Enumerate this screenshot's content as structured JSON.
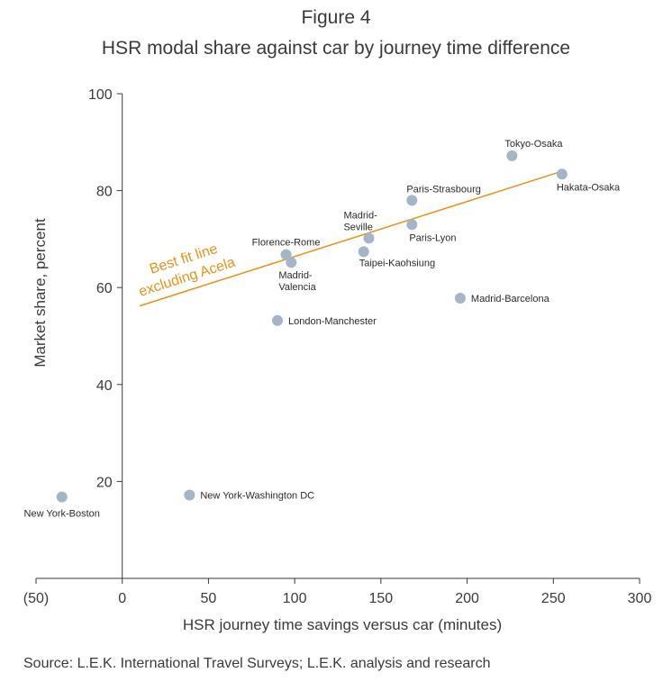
{
  "figure_label": "Figure 4",
  "source_note": "Source: L.E.K. International Travel Surveys; L.E.K. analysis and research",
  "colors": {
    "point": "#a3b5c6",
    "fit_line": "#e8921a",
    "axis": "#3a3a3a"
  },
  "chart_data": {
    "type": "scatter",
    "title": "HSR modal share against car by journey time difference",
    "xlabel": "HSR journey time savings versus car (minutes)",
    "ylabel": "Market share, percent",
    "xlim": [
      -50,
      300
    ],
    "ylim": [
      0,
      100
    ],
    "x_ticks": [
      -50,
      0,
      50,
      100,
      150,
      200,
      250,
      300
    ],
    "x_tick_labels": [
      "(50)",
      "0",
      "50",
      "100",
      "150",
      "200",
      "250",
      "300"
    ],
    "y_ticks": [
      20,
      40,
      60,
      80,
      100
    ],
    "y_tick_labels": [
      "20",
      "40",
      "60",
      "80",
      "100"
    ],
    "grid": false,
    "points": [
      {
        "label": "New York-Boston",
        "x": -35,
        "y": 16.8
      },
      {
        "label": "New York-Washington DC",
        "x": 39,
        "y": 17.2
      },
      {
        "label": "London-Manchester",
        "x": 90,
        "y": 53.2
      },
      {
        "label": "Florence-Rome",
        "x": 95,
        "y": 66.8
      },
      {
        "label": "Madrid-\nValencia",
        "x": 98,
        "y": 65.2
      },
      {
        "label": "Taipei-Kaohsiung",
        "x": 140,
        "y": 67.4
      },
      {
        "label": "Madrid-\nSeville",
        "x": 143,
        "y": 70.2
      },
      {
        "label": "Paris-Lyon",
        "x": 168,
        "y": 73.0
      },
      {
        "label": "Paris-Strasbourg",
        "x": 168,
        "y": 78.0
      },
      {
        "label": "Madrid-Barcelona",
        "x": 196,
        "y": 57.8
      },
      {
        "label": "Tokyo-Osaka",
        "x": 226,
        "y": 87.2
      },
      {
        "label": "Hakata-Osaka",
        "x": 255,
        "y": 83.4
      }
    ],
    "fit_line": {
      "label_lines": [
        "Best fit line",
        "excluding Acela"
      ],
      "x": [
        10,
        255
      ],
      "y": [
        56.2,
        84.0
      ]
    }
  }
}
